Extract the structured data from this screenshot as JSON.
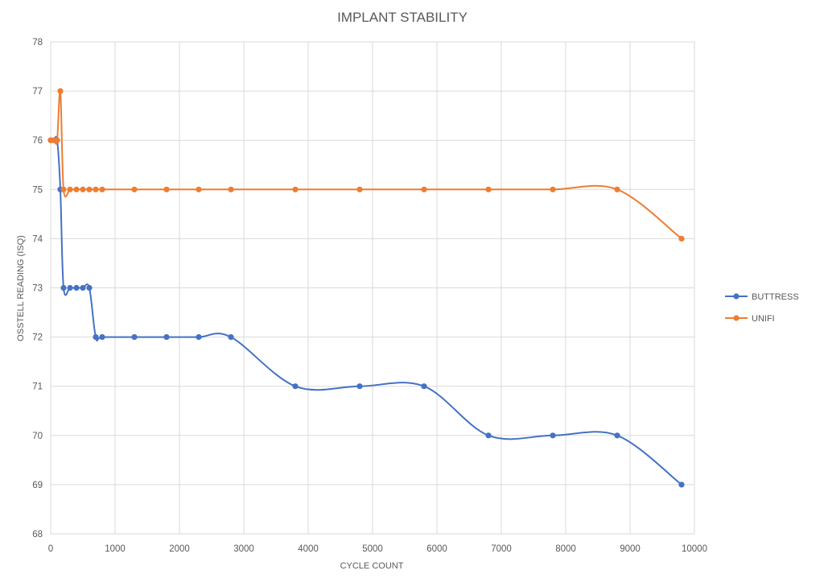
{
  "chart_data": {
    "type": "line",
    "title": "IMPLANT STABILITY",
    "xlabel": "CYCLE COUNT",
    "ylabel": "OSSTELL READING (ISQ)",
    "xlim": [
      0,
      10000
    ],
    "ylim": [
      68,
      78
    ],
    "xticks": [
      0,
      1000,
      2000,
      3000,
      4000,
      5000,
      6000,
      7000,
      8000,
      9000,
      10000
    ],
    "yticks": [
      68,
      69,
      70,
      71,
      72,
      73,
      74,
      75,
      76,
      77,
      78
    ],
    "grid": true,
    "smooth": true,
    "legend_position": "right",
    "series": [
      {
        "name": "BUTTRESS",
        "color": "#4472c4",
        "x": [
          0,
          50,
          100,
          150,
          200,
          300,
          400,
          500,
          600,
          700,
          800,
          1300,
          1800,
          2300,
          2800,
          3800,
          4800,
          5800,
          6800,
          7800,
          8800,
          9800
        ],
        "y": [
          76,
          76,
          76,
          75,
          73,
          73,
          73,
          73,
          73,
          72,
          72,
          72,
          72,
          72,
          72,
          71,
          71,
          71,
          70,
          70,
          70,
          69
        ]
      },
      {
        "name": "UNIFI",
        "color": "#ed7d31",
        "x": [
          0,
          50,
          100,
          150,
          200,
          300,
          400,
          500,
          600,
          700,
          800,
          1300,
          1800,
          2300,
          2800,
          3800,
          4800,
          5800,
          6800,
          7800,
          8800,
          9800
        ],
        "y": [
          76,
          76,
          76,
          77,
          75,
          75,
          75,
          75,
          75,
          75,
          75,
          75,
          75,
          75,
          75,
          75,
          75,
          75,
          75,
          75,
          75,
          74
        ]
      }
    ]
  }
}
